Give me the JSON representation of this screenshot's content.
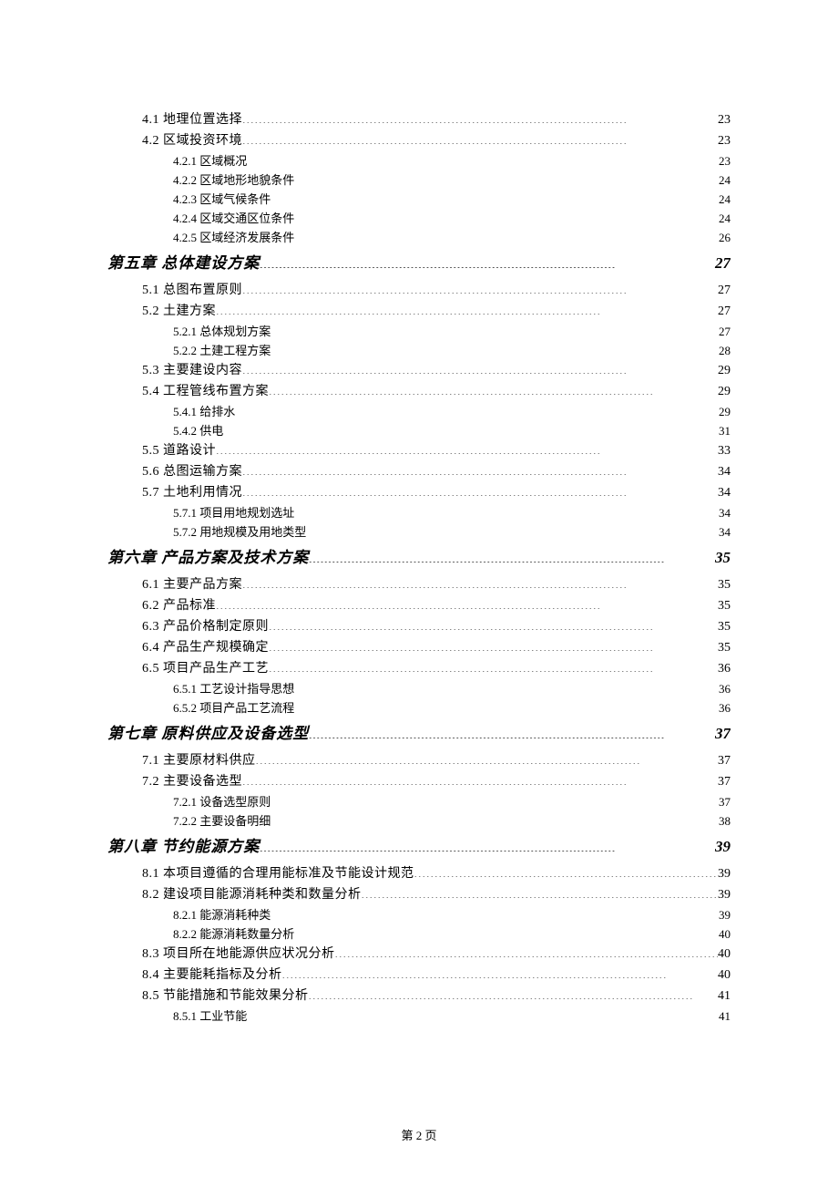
{
  "footer": "第 2 页",
  "leader_chars": {
    "chapter": "............................................................................................",
    "section": "..............................................................................................",
    "subsection": "........................................................................................................................................................................"
  },
  "entries": [
    {
      "level": "section",
      "text": "4.1 地理位置选择",
      "page": "23"
    },
    {
      "level": "section",
      "text": "4.2 区域投资环境",
      "page": "23"
    },
    {
      "level": "subsection",
      "text": "4.2.1 区域概况",
      "page": "23"
    },
    {
      "level": "subsection",
      "text": "4.2.2 区域地形地貌条件",
      "page": "24"
    },
    {
      "level": "subsection",
      "text": "4.2.3 区域气候条件",
      "page": "24"
    },
    {
      "level": "subsection",
      "text": "4.2.4 区域交通区位条件",
      "page": "24"
    },
    {
      "level": "subsection",
      "text": "4.2.5 区域经济发展条件",
      "page": "26"
    },
    {
      "level": "chapter",
      "text": "第五章 总体建设方案",
      "page": "27"
    },
    {
      "level": "section",
      "text": "5.1 总图布置原则",
      "page": "27"
    },
    {
      "level": "section",
      "text": "5.2 土建方案",
      "page": "27"
    },
    {
      "level": "subsection",
      "text": "5.2.1 总体规划方案",
      "page": "27"
    },
    {
      "level": "subsection",
      "text": "5.2.2 土建工程方案",
      "page": "28"
    },
    {
      "level": "section",
      "text": "5.3 主要建设内容",
      "page": "29"
    },
    {
      "level": "section",
      "text": "5.4 工程管线布置方案",
      "page": "29"
    },
    {
      "level": "subsection",
      "text": "5.4.1 给排水",
      "page": "29"
    },
    {
      "level": "subsection",
      "text": "5.4.2 供电",
      "page": "31"
    },
    {
      "level": "section",
      "text": "5.5 道路设计",
      "page": "33"
    },
    {
      "level": "section",
      "text": "5.6 总图运输方案",
      "page": "34"
    },
    {
      "level": "section",
      "text": "5.7 土地利用情况",
      "page": "34"
    },
    {
      "level": "subsection",
      "text": "5.7.1 项目用地规划选址",
      "page": "34"
    },
    {
      "level": "subsection",
      "text": "5.7.2 用地规模及用地类型",
      "page": "34"
    },
    {
      "level": "chapter",
      "text": "第六章 产品方案及技术方案",
      "page": "35"
    },
    {
      "level": "section",
      "text": "6.1 主要产品方案",
      "page": "35"
    },
    {
      "level": "section",
      "text": "6.2 产品标准",
      "page": "35"
    },
    {
      "level": "section",
      "text": "6.3 产品价格制定原则",
      "page": "35"
    },
    {
      "level": "section",
      "text": "6.4 产品生产规模确定",
      "page": "35"
    },
    {
      "level": "section",
      "text": "6.5 项目产品生产工艺",
      "page": "36"
    },
    {
      "level": "subsection",
      "text": "6.5.1 工艺设计指导思想",
      "page": "36"
    },
    {
      "level": "subsection",
      "text": "6.5.2 项目产品工艺流程",
      "page": "36"
    },
    {
      "level": "chapter",
      "text": "第七章 原料供应及设备选型",
      "page": "37"
    },
    {
      "level": "section",
      "text": "7.1 主要原材料供应",
      "page": "37"
    },
    {
      "level": "section",
      "text": "7.2 主要设备选型",
      "page": "37"
    },
    {
      "level": "subsection",
      "text": "7.2.1 设备选型原则",
      "page": "37"
    },
    {
      "level": "subsection",
      "text": "7.2.2 主要设备明细",
      "page": "38"
    },
    {
      "level": "chapter",
      "text": "第八章 节约能源方案",
      "page": "39"
    },
    {
      "level": "section",
      "text": "8.1 本项目遵循的合理用能标准及节能设计规范",
      "page": "39"
    },
    {
      "level": "section",
      "text": "8.2 建设项目能源消耗种类和数量分析",
      "page": "39"
    },
    {
      "level": "subsection",
      "text": "8.2.1 能源消耗种类",
      "page": "39"
    },
    {
      "level": "subsection",
      "text": "8.2.2 能源消耗数量分析",
      "page": "40"
    },
    {
      "level": "section",
      "text": "8.3 项目所在地能源供应状况分析",
      "page": "40"
    },
    {
      "level": "section",
      "text": "8.4 主要能耗指标及分析",
      "page": "40"
    },
    {
      "level": "section",
      "text": "8.5 节能措施和节能效果分析",
      "page": "41"
    },
    {
      "level": "subsection",
      "text": "8.5.1 工业节能",
      "page": "41"
    }
  ]
}
